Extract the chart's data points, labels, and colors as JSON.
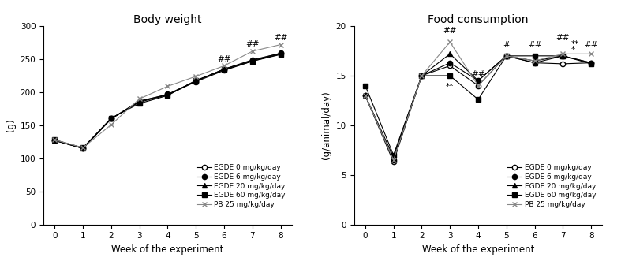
{
  "weeks": [
    0,
    1,
    2,
    3,
    4,
    5,
    6,
    7,
    8
  ],
  "body_weight": {
    "egde_0": [
      127,
      115,
      160,
      185,
      196,
      216,
      233,
      247,
      258
    ],
    "egde_6": [
      127,
      115,
      160,
      186,
      197,
      217,
      235,
      249,
      259
    ],
    "egde_20": [
      127,
      115,
      160,
      187,
      196,
      217,
      235,
      248,
      259
    ],
    "egde_60": [
      128,
      116,
      161,
      183,
      195,
      218,
      234,
      247,
      257
    ],
    "pb_25": [
      128,
      116,
      151,
      190,
      209,
      224,
      240,
      262,
      272
    ]
  },
  "food_consumption": {
    "egde_0": [
      13.0,
      6.3,
      15.0,
      16.0,
      14.0,
      17.0,
      16.3,
      16.2,
      16.3
    ],
    "egde_6": [
      13.0,
      6.5,
      15.0,
      16.3,
      14.5,
      17.0,
      16.5,
      17.0,
      16.3
    ],
    "egde_20": [
      13.0,
      6.8,
      15.0,
      17.2,
      14.5,
      17.0,
      16.3,
      17.0,
      16.3
    ],
    "egde_60": [
      14.0,
      7.0,
      15.0,
      15.0,
      12.6,
      17.0,
      17.0,
      17.0,
      16.2
    ],
    "pb_25": [
      13.0,
      6.5,
      15.0,
      18.4,
      14.0,
      17.0,
      16.5,
      17.2,
      17.2
    ]
  },
  "legend_labels": [
    "EGDE 0 mg/kg/day",
    "EGDE 6 mg/kg/day",
    "EGDE 20 mg/kg/day",
    "EGDE 60 mg/kg/day",
    "PB 25 mg/kg/day"
  ],
  "bw_title": "Body weight",
  "fc_title": "Food consumption",
  "bw_ylabel": "(g)",
  "fc_ylabel": "(g/animal/day)",
  "xlabel": "Week of the experiment",
  "bw_ylim": [
    0,
    300
  ],
  "fc_ylim": [
    0,
    20
  ],
  "bw_yticks": [
    0,
    50,
    100,
    150,
    200,
    250,
    300
  ],
  "fc_yticks": [
    0,
    5,
    10,
    15,
    20
  ],
  "xticks": [
    0,
    1,
    2,
    3,
    4,
    5,
    6,
    7,
    8
  ],
  "line_color": "#000000",
  "pb_color": "#888888",
  "markers": [
    "o",
    "o",
    "^",
    "s",
    "x"
  ],
  "mfcs": [
    "white",
    "black",
    "black",
    "black",
    "black"
  ]
}
